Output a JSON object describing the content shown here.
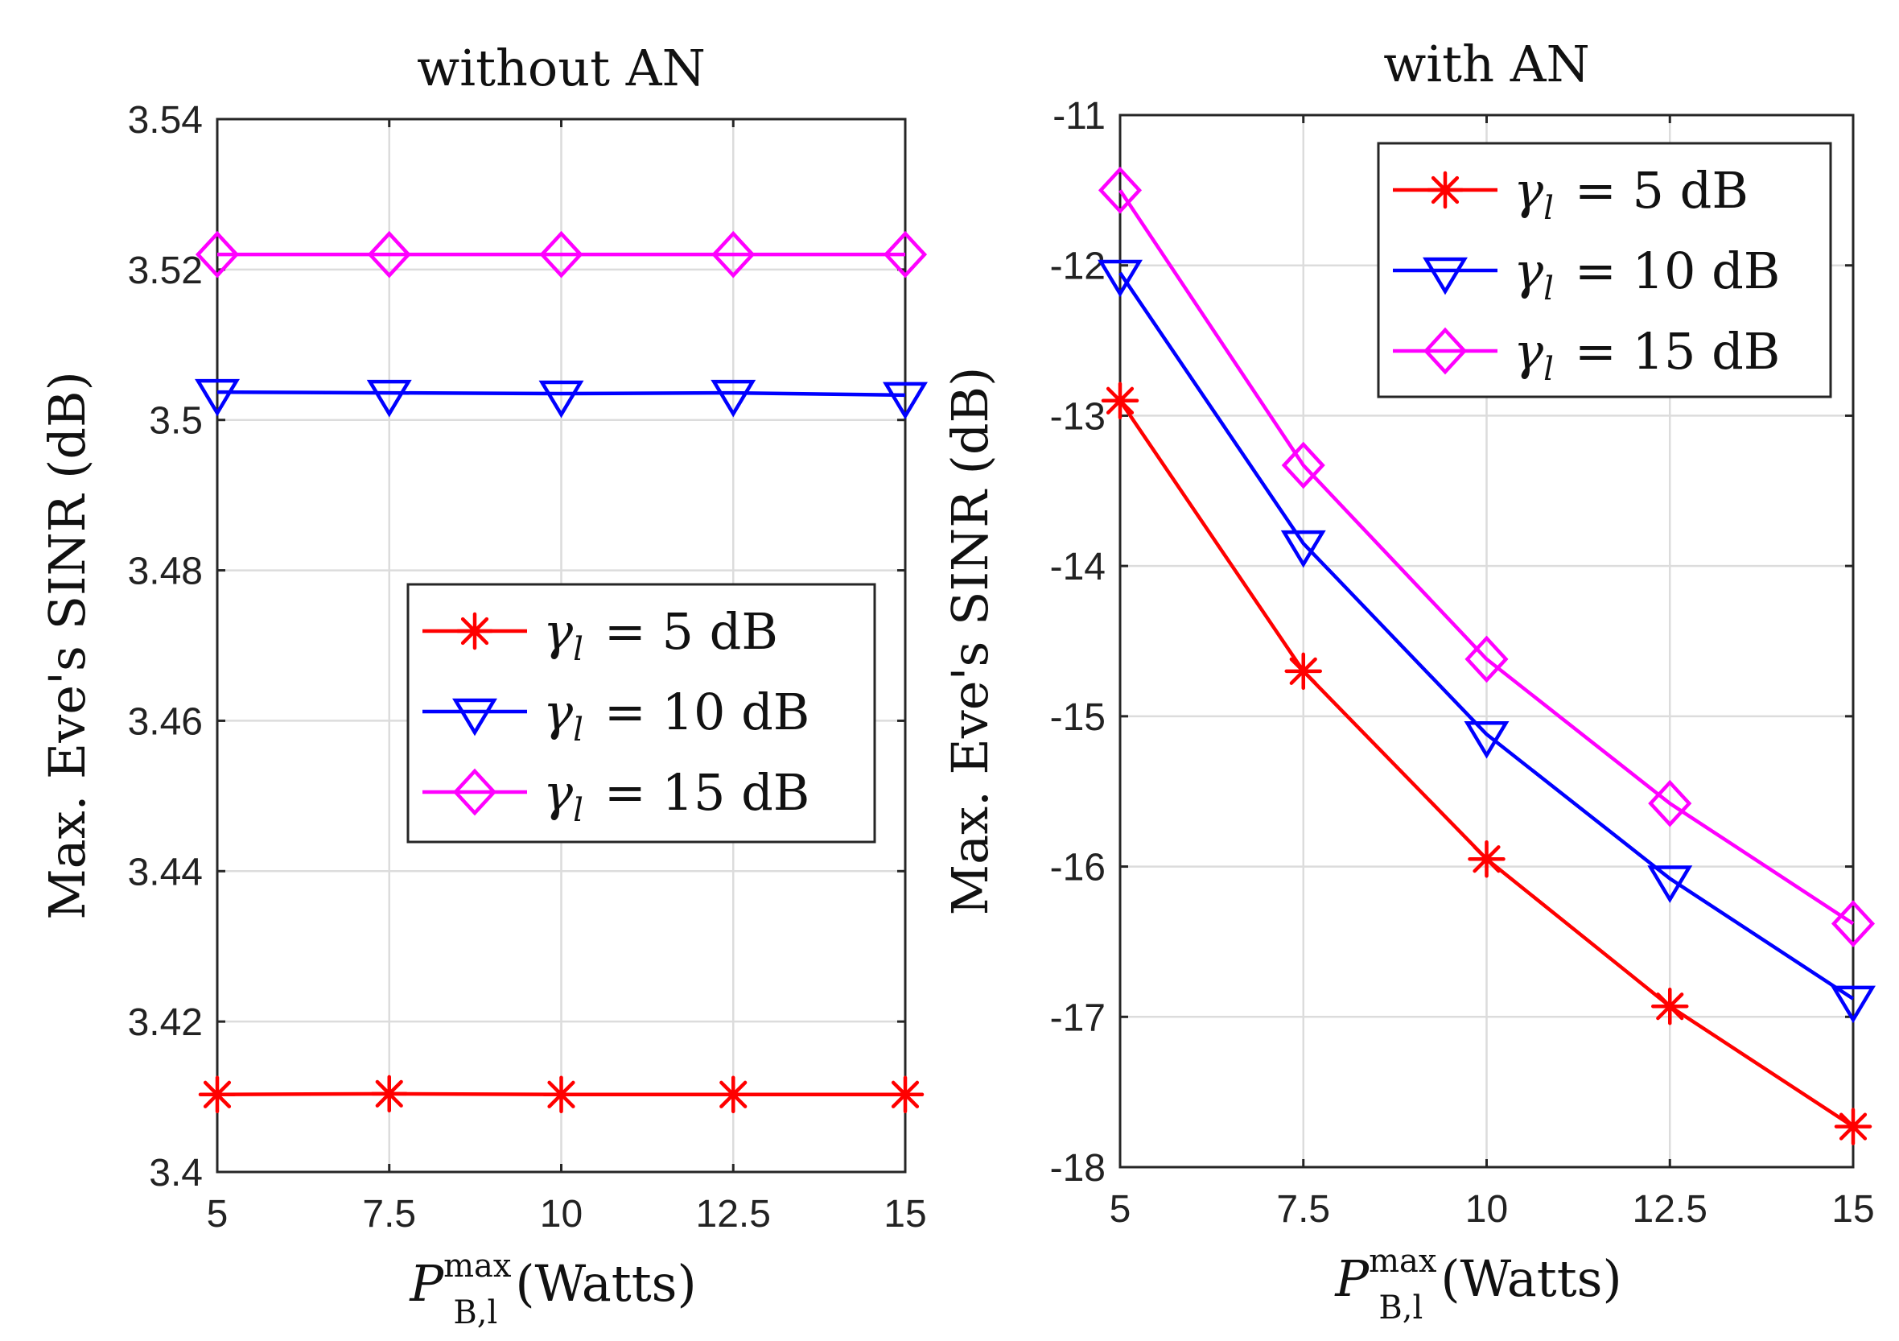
{
  "chart_data": [
    {
      "type": "line",
      "title": "without AN",
      "ylabel": "Max. Eve's SINR (dB)",
      "xlabel_main": "P",
      "xlabel_sup": "max",
      "xlabel_sub": "B,l",
      "xlabel_unit": "(Watts)",
      "x": [
        5,
        7.5,
        10,
        12.5,
        15
      ],
      "xlim": [
        5,
        15
      ],
      "ylim": [
        3.4,
        3.54
      ],
      "xticks": [
        5,
        7.5,
        10,
        12.5,
        15
      ],
      "xtick_labels": [
        "5",
        "7.5",
        "10",
        "12.5",
        "15"
      ],
      "yticks": [
        3.4,
        3.42,
        3.44,
        3.46,
        3.48,
        3.5,
        3.52,
        3.54
      ],
      "ytick_labels": [
        "3.4",
        "3.42",
        "3.44",
        "3.46",
        "3.48",
        "3.5",
        "3.52",
        "3.54"
      ],
      "grid": true,
      "legend_position": "center-right",
      "series": [
        {
          "name": "γl = 5 dB",
          "symbol": "γ",
          "sub": "l",
          "value_text": "= 5 dB",
          "color": "#ff0000",
          "marker": "asterisk",
          "values": [
            3.4103,
            3.4104,
            3.4103,
            3.4103,
            3.4103
          ]
        },
        {
          "name": "γl = 10 dB",
          "symbol": "γ",
          "sub": "l",
          "value_text": "= 10 dB",
          "color": "#0000ff",
          "marker": "triangle-down",
          "values": [
            3.5037,
            3.5036,
            3.5035,
            3.5036,
            3.5033
          ]
        },
        {
          "name": "γl = 15 dB",
          "symbol": "γ",
          "sub": "l",
          "value_text": "= 15 dB",
          "color": "#ff00ff",
          "marker": "diamond",
          "values": [
            3.522,
            3.522,
            3.522,
            3.522,
            3.522
          ]
        }
      ]
    },
    {
      "type": "line",
      "title": "with AN",
      "ylabel": "Max. Eve's SINR (dB)",
      "xlabel_main": "P",
      "xlabel_sup": "max",
      "xlabel_sub": "B,l",
      "xlabel_unit": "(Watts)",
      "x": [
        5,
        7.5,
        10,
        12.5,
        15
      ],
      "xlim": [
        5,
        15
      ],
      "ylim": [
        -18,
        -11
      ],
      "xticks": [
        5,
        7.5,
        10,
        12.5,
        15
      ],
      "xtick_labels": [
        "5",
        "7.5",
        "10",
        "12.5",
        "15"
      ],
      "yticks": [
        -18,
        -17,
        -16,
        -15,
        -14,
        -13,
        -12,
        -11
      ],
      "ytick_labels": [
        "-18",
        "-17",
        "-16",
        "-15",
        "-14",
        "-13",
        "-12",
        "-11"
      ],
      "grid": true,
      "legend_position": "top-right",
      "series": [
        {
          "name": "γl = 5 dB",
          "symbol": "γ",
          "sub": "l",
          "value_text": "= 5 dB",
          "color": "#ff0000",
          "marker": "asterisk",
          "values": [
            -12.9,
            -14.7,
            -15.95,
            -16.93,
            -17.73
          ]
        },
        {
          "name": "γl = 10 dB",
          "symbol": "γ",
          "sub": "l",
          "value_text": "= 10 dB",
          "color": "#0000ff",
          "marker": "triangle-down",
          "values": [
            -12.05,
            -13.85,
            -15.12,
            -16.08,
            -16.88
          ]
        },
        {
          "name": "γl = 15 dB",
          "symbol": "γ",
          "sub": "l",
          "value_text": "= 15 dB",
          "color": "#ff00ff",
          "marker": "diamond",
          "values": [
            -11.5,
            -13.33,
            -14.62,
            -15.58,
            -16.38
          ]
        }
      ]
    }
  ]
}
